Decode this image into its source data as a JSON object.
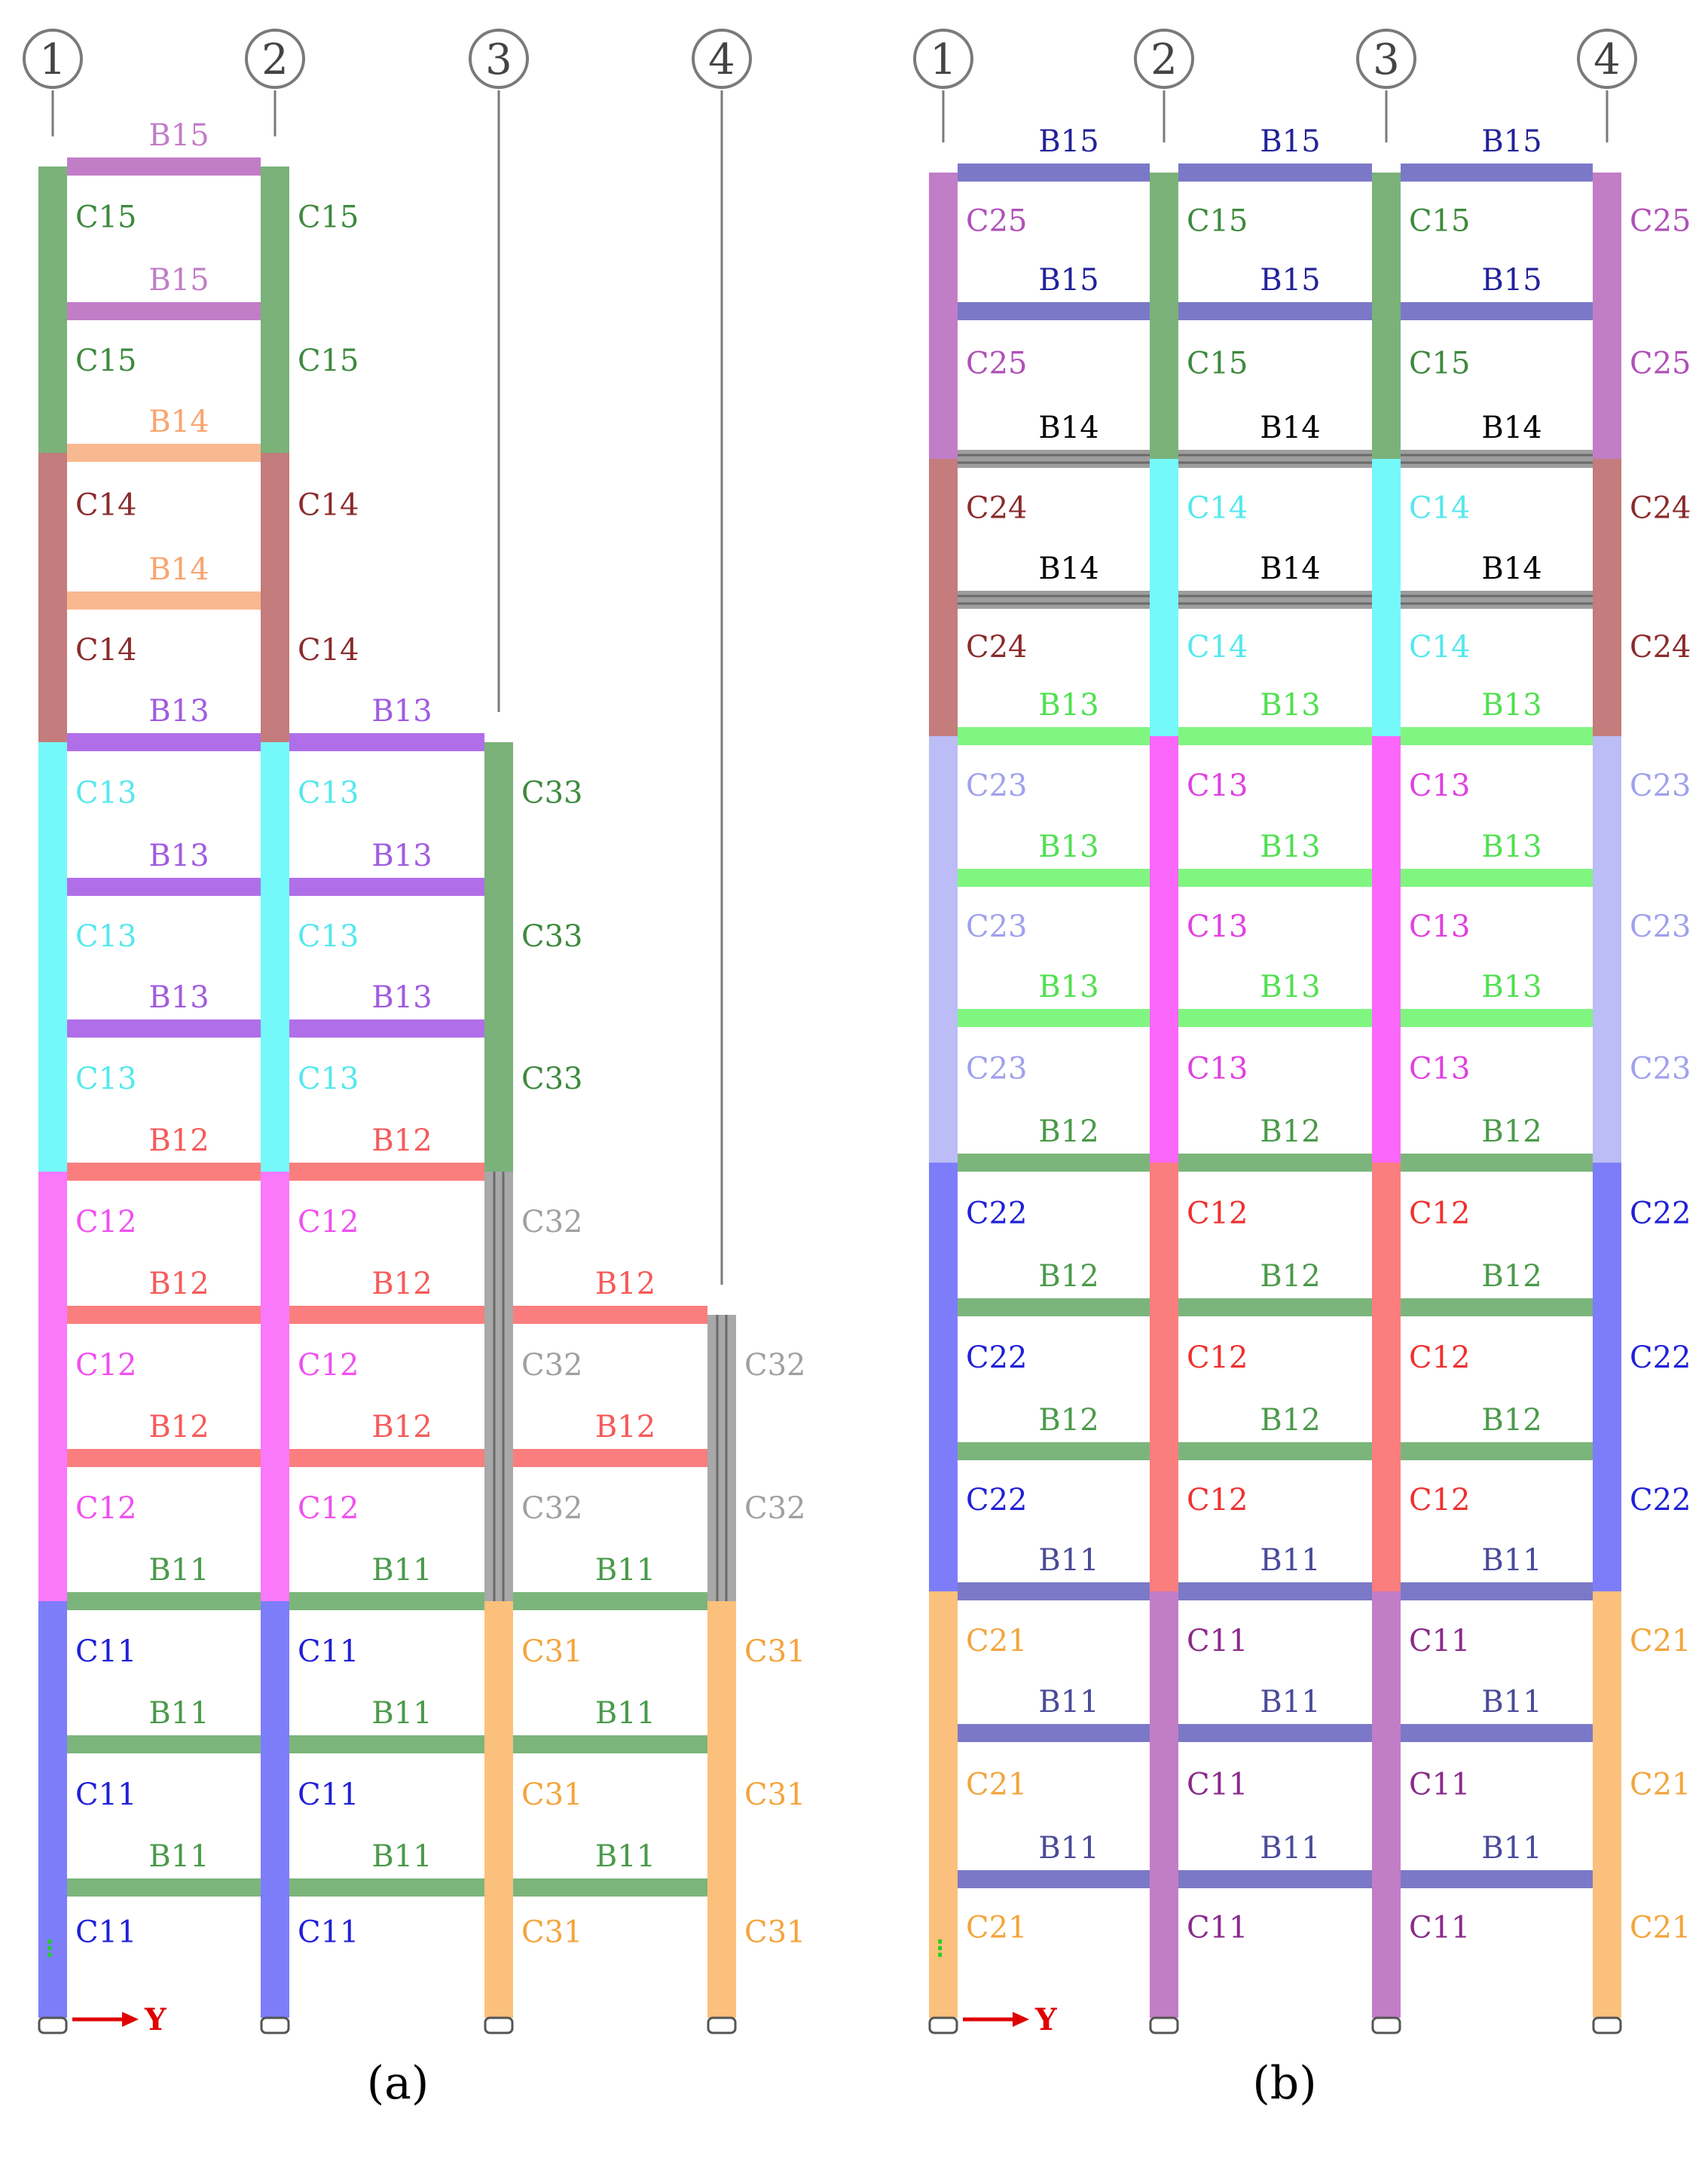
{
  "colors": {
    "B15a": "#c27dc7",
    "C15a": "#7ab27a",
    "B14a": "#f9b990",
    "C14a": "#c47c7c",
    "B13a": "#b06fe8",
    "C13a": "#75f8fa",
    "C33": "#7ab27a",
    "B12a": "#fa7e7e",
    "C12a": "#fa79fa",
    "C32": "#a8a8a8",
    "B11": "#7cb57c",
    "C11a": "#7d7dfa",
    "C31": "#fbc07c",
    "B15b": "#7b79c7",
    "C25": "#c27dc7",
    "C15b": "#7ab27a",
    "B14b": "#9e9e9e",
    "C24": "#c47c7c",
    "C14b": "#75f8fa",
    "B13b": "#80f680",
    "C23": "#bcbcf6",
    "C13b": "#fa67fa",
    "B12b": "#7cb57c",
    "C22": "#7d7dfa",
    "C12b": "#fa7e7e",
    "B11b": "#7b79c7",
    "C21": "#fbc07c",
    "C11b": "#c27dc7",
    "B15aText": "#c27dc7",
    "C15aText": "#3d8a3d",
    "B14aText": "#f9a470",
    "C14aText": "#8b2b2b",
    "B13aText": "#a05be0",
    "C13aText": "#55e8ee",
    "C33Text": "#3d8a3d",
    "B12aText": "#f65a5a",
    "C12aText": "#f050f0",
    "C32Text": "#a0a0a0",
    "B11Text": "#4a9a4a",
    "C11aText": "#2020d8",
    "C31Text": "#f4a43c",
    "B15bText": "#22229a",
    "C25Text": "#b050b8",
    "C15bText": "#3d8a3d",
    "B14bText": "#000000",
    "C24Text": "#8b2b2b",
    "C14bText": "#55e8ee",
    "B13bText": "#50e050",
    "C23Text": "#a0a0ee",
    "C13bText": "#e040e0",
    "B12bText": "#4a9a4a",
    "C22Text": "#2020d8",
    "C12bText": "#f03030",
    "B11bText": "#4a4a9a",
    "C21Text": "#f4a43c",
    "C11bText": "#8a2a8a",
    "axisArrow": "#e00000",
    "support": "#20d020"
  },
  "captions": [
    "(a)",
    "(b)"
  ],
  "grid_labels": [
    "1",
    "2",
    "3",
    "4"
  ],
  "axis_label": "Y",
  "labels": {
    "B15": "B15",
    "B14": "B14",
    "B13": "B13",
    "B12": "B12",
    "B11": "B11",
    "C15": "C15",
    "C14": "C14",
    "C13": "C13",
    "C12": "C12",
    "C11": "C11",
    "C33": "C33",
    "C32": "C32",
    "C31": "C31",
    "C25": "C25",
    "C24": "C24",
    "C23": "C23",
    "C22": "C22",
    "C21": "C21"
  },
  "frames": [
    {
      "id": "a",
      "columns_by_storey": [
        [
          "C11",
          "C11",
          "C31",
          "C31"
        ],
        [
          "C11",
          "C11",
          "C31",
          "C31"
        ],
        [
          "C11",
          "C11",
          "C31",
          "C31"
        ],
        [
          "C12",
          "C12",
          "C32",
          "C32"
        ],
        [
          "C12",
          "C12",
          "C32",
          "C32"
        ],
        [
          "C12",
          "C12",
          "C32",
          ""
        ],
        [
          "C13",
          "C13",
          "C33",
          ""
        ],
        [
          "C13",
          "C13",
          "C33",
          ""
        ],
        [
          "C13",
          "C13",
          "C33",
          ""
        ],
        [
          "C14",
          "C14",
          "",
          ""
        ],
        [
          "C14",
          "C14",
          "",
          ""
        ],
        [
          "C15",
          "C15",
          "",
          ""
        ],
        [
          "C15",
          "C15",
          "",
          ""
        ]
      ],
      "beams_by_floor": [
        [
          "B11",
          "B11",
          "B11"
        ],
        [
          "B11",
          "B11",
          "B11"
        ],
        [
          "B11",
          "B11",
          "B11"
        ],
        [
          "B12",
          "B12",
          "B12"
        ],
        [
          "B12",
          "B12",
          "B12"
        ],
        [
          "B12",
          "B12",
          ""
        ],
        [
          "B13",
          "B13",
          ""
        ],
        [
          "B13",
          "B13",
          ""
        ],
        [
          "B13",
          "B13",
          ""
        ],
        [
          "B14",
          "",
          ""
        ],
        [
          "B14",
          "",
          ""
        ],
        [
          "B15",
          "",
          ""
        ],
        [
          "B15",
          "",
          ""
        ]
      ]
    },
    {
      "id": "b",
      "columns_by_storey": [
        [
          "C21",
          "C11",
          "C11",
          "C21"
        ],
        [
          "C21",
          "C11",
          "C11",
          "C21"
        ],
        [
          "C21",
          "C11",
          "C11",
          "C21"
        ],
        [
          "C22",
          "C12",
          "C12",
          "C22"
        ],
        [
          "C22",
          "C12",
          "C12",
          "C22"
        ],
        [
          "C22",
          "C12",
          "C12",
          "C22"
        ],
        [
          "C23",
          "C13",
          "C13",
          "C23"
        ],
        [
          "C23",
          "C13",
          "C13",
          "C23"
        ],
        [
          "C23",
          "C13",
          "C13",
          "C23"
        ],
        [
          "C24",
          "C14",
          "C14",
          "C24"
        ],
        [
          "C24",
          "C14",
          "C14",
          "C24"
        ],
        [
          "C25",
          "C15",
          "C15",
          "C25"
        ],
        [
          "C25",
          "C15",
          "C15",
          "C25"
        ]
      ],
      "beams_by_floor": [
        [
          "B11",
          "B11",
          "B11"
        ],
        [
          "B11",
          "B11",
          "B11"
        ],
        [
          "B11",
          "B11",
          "B11"
        ],
        [
          "B12",
          "B12",
          "B12"
        ],
        [
          "B12",
          "B12",
          "B12"
        ],
        [
          "B12",
          "B12",
          "B12"
        ],
        [
          "B13",
          "B13",
          "B13"
        ],
        [
          "B13",
          "B13",
          "B13"
        ],
        [
          "B13",
          "B13",
          "B13"
        ],
        [
          "B14",
          "B14",
          "B14"
        ],
        [
          "B14",
          "B14",
          "B14"
        ],
        [
          "B15",
          "B15",
          "B15"
        ],
        [
          "B15",
          "B15",
          "B15"
        ]
      ]
    }
  ]
}
